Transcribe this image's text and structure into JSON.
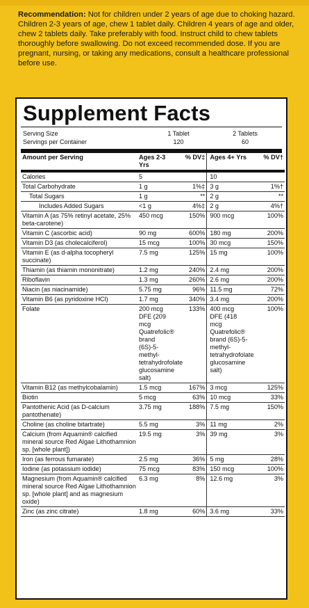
{
  "recommendation": {
    "label": "Recommendation:",
    "text": " Not for children under 2 years of age due to choking hazard. Children 2-3 years of age, chew 1 tablet daily. Children 4 years of age and older, chew 2 tablets daily. Take preferably with food. Instruct child to chew tablets thoroughly before swallowing. Do not exceed recommended dose. If you are pregnant, nursing, or taking any medications, consult a healthcare professional before use."
  },
  "facts": {
    "title": "Supplement Facts",
    "serving_size_label": "Serving Size",
    "servings_per_container_label": "Servings per Container",
    "serving_size_col1": "1 Tablet",
    "serving_size_col2": "2 Tablets",
    "servings_col1": "120",
    "servings_col2": "60",
    "header": {
      "amount": "Amount per Serving",
      "ages1": "Ages 2-3 Yrs",
      "dv1": "% DV‡",
      "ages2": "Ages 4+ Yrs",
      "dv2": "% DV†"
    },
    "rows": [
      {
        "name": "Calories",
        "a1": "5",
        "d1": "",
        "a2": "10",
        "d2": "",
        "indent": 0
      },
      {
        "name": "Total Carbohydrate",
        "a1": "1 g",
        "d1": "1%‡",
        "a2": "3 g",
        "d2": "1%†",
        "indent": 0
      },
      {
        "name": "Total Sugars",
        "a1": "1 g",
        "d1": "**",
        "a2": "2 g",
        "d2": "**",
        "indent": 1
      },
      {
        "name": "Includes Added Sugars",
        "a1": "<1 g",
        "d1": "4%‡",
        "a2": "2 g",
        "d2": "4%†",
        "indent": 2
      },
      {
        "name": "Vitamin A (as 75% retinyl acetate, 25% beta-carotene)",
        "a1": "450 mcg",
        "d1": "150%",
        "a2": "900 mcg",
        "d2": "100%",
        "indent": 0
      },
      {
        "name": "Vitamin C (ascorbic acid)",
        "a1": "90 mg",
        "d1": "600%",
        "a2": "180 mg",
        "d2": "200%",
        "indent": 0
      },
      {
        "name": "Vitamin D3 (as cholecalciferol)",
        "a1": "15 mcg",
        "d1": "100%",
        "a2": "30 mcg",
        "d2": "150%",
        "indent": 0
      },
      {
        "name": "Vitamin E (as d-alpha tocopheryl succinate)",
        "a1": "7.5 mg",
        "d1": "125%",
        "a2": "15 mg",
        "d2": "100%",
        "indent": 0
      },
      {
        "name": "Thiamin (as thiamin mononitrate)",
        "a1": "1.2 mg",
        "d1": "240%",
        "a2": "2.4 mg",
        "d2": "200%",
        "indent": 0
      },
      {
        "name": "Riboflavin",
        "a1": "1.3 mg",
        "d1": "260%",
        "a2": "2.6 mg",
        "d2": "200%",
        "indent": 0
      },
      {
        "name": "Niacin (as niacinamide)",
        "a1": "5.75 mg",
        "d1": "96%",
        "a2": "11.5 mg",
        "d2": "72%",
        "indent": 0
      },
      {
        "name": "Vitamin B6 (as pyridoxine HCl)",
        "a1": "1.7 mg",
        "d1": "340%",
        "a2": "3.4 mg",
        "d2": "200%",
        "indent": 0
      },
      {
        "name": "Folate",
        "a1": "200 mcg DFE (209 mcg Quatrefolic® brand (6S)-5-methyl-tetrahydrofolate glucosamine salt)",
        "d1": "133%",
        "a2": "400 mcg DFE (418 mcg Quatrefolic® brand (6S)-5-methyl-tetrahydrofolate glucosamine salt)",
        "d2": "100%",
        "indent": 0,
        "wide": true
      },
      {
        "name": "Vitamin B12 (as methylcobalamin)",
        "a1": "1.5 mcg",
        "d1": "167%",
        "a2": "3 mcg",
        "d2": "125%",
        "indent": 0
      },
      {
        "name": "Biotin",
        "a1": "5 mcg",
        "d1": "63%",
        "a2": "10 mcg",
        "d2": "33%",
        "indent": 0
      },
      {
        "name": "Pantothenic Acid (as D-calcium pantothenate)",
        "a1": "3.75 mg",
        "d1": "188%",
        "a2": "7.5 mg",
        "d2": "150%",
        "indent": 0
      },
      {
        "name": "Choline (as choline bitartrate)",
        "a1": "5.5 mg",
        "d1": "3%",
        "a2": "11 mg",
        "d2": "2%",
        "indent": 0
      },
      {
        "name": "Calcium (from Aquamin® calcified mineral source Red Algae Lithothamnion sp. [whole plant])",
        "a1": "19.5 mg",
        "d1": "3%",
        "a2": "39 mg",
        "d2": "3%",
        "indent": 0
      },
      {
        "name": "Iron (as ferrous fumarate)",
        "a1": "2.5 mg",
        "d1": "36%",
        "a2": "5 mg",
        "d2": "28%",
        "indent": 0
      },
      {
        "name": "Iodine (as potassium iodide)",
        "a1": "75 mcg",
        "d1": "83%",
        "a2": "150 mcg",
        "d2": "100%",
        "indent": 0
      },
      {
        "name": "Magnesium (from Aquamin® calcified mineral source Red Algae Lithothamnion sp. [whole plant] and as magnesium oxide)",
        "a1": "6.3 mg",
        "d1": "8%",
        "a2": "12.6 mg",
        "d2": "3%",
        "indent": 0
      },
      {
        "name": "Zinc (as zinc citrate)",
        "a1": "1.8 mg",
        "d1": "60%",
        "a2": "3.6 mg",
        "d2": "33%",
        "indent": 0
      }
    ]
  }
}
